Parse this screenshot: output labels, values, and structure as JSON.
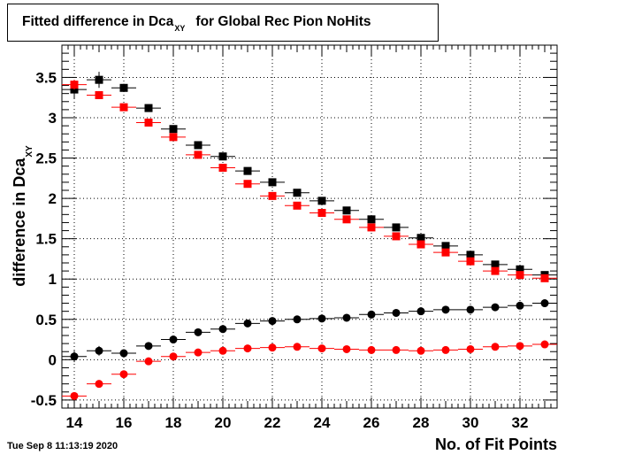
{
  "title": {
    "main": "Fitted difference in Dca",
    "sub": "XY",
    "rest": "for Global Rec Pion NoHits"
  },
  "timestamp": "Tue Sep  8 11:13:19 2020",
  "chart_data": {
    "type": "scatter",
    "title": "Fitted difference in Dca_XY for Global Rec Pion NoHits",
    "xlabel": "No. of Fit Points",
    "ylabel": {
      "main": "difference in Dca",
      "sub": "XY"
    },
    "xlim": [
      13.5,
      33.5
    ],
    "ylim": [
      -0.6,
      3.9
    ],
    "x_ticks": [
      "14",
      "16",
      "18",
      "20",
      "22",
      "24",
      "26",
      "28",
      "30",
      "32"
    ],
    "y_ticks": [
      "-0.5",
      "0",
      "0.5",
      "1",
      "1.5",
      "2",
      "2.5",
      "3",
      "3.5"
    ],
    "grid": true,
    "x": [
      14,
      15,
      16,
      17,
      18,
      19,
      20,
      21,
      22,
      23,
      24,
      25,
      26,
      27,
      28,
      29,
      30,
      31,
      32,
      33
    ],
    "series": [
      {
        "color": "#000000",
        "marker": "square",
        "values": [
          3.35,
          3.47,
          3.37,
          3.12,
          2.86,
          2.66,
          2.52,
          2.34,
          2.2,
          2.07,
          1.97,
          1.85,
          1.74,
          1.64,
          1.51,
          1.41,
          1.3,
          1.18,
          1.12,
          1.05
        ],
        "errors": [
          0.12,
          0.1,
          0.05,
          0.04,
          0.03,
          0.03,
          0.03,
          0.03,
          0.02,
          0.02,
          0.02,
          0.02,
          0.02,
          0.02,
          0.02,
          0.02,
          0.02,
          0.02,
          0.02,
          0.02
        ]
      },
      {
        "color": "#ff0000",
        "marker": "square",
        "values": [
          3.41,
          3.28,
          3.13,
          2.94,
          2.76,
          2.54,
          2.38,
          2.18,
          2.03,
          1.91,
          1.82,
          1.74,
          1.64,
          1.53,
          1.43,
          1.33,
          1.22,
          1.1,
          1.05,
          1.01
        ],
        "errors": [
          0.06,
          0.05,
          0.04,
          0.03,
          0.03,
          0.03,
          0.02,
          0.02,
          0.02,
          0.02,
          0.02,
          0.02,
          0.02,
          0.02,
          0.02,
          0.02,
          0.02,
          0.02,
          0.02,
          0.02
        ]
      },
      {
        "color": "#000000",
        "marker": "circle",
        "values": [
          0.04,
          0.11,
          0.08,
          0.17,
          0.25,
          0.34,
          0.38,
          0.45,
          0.48,
          0.5,
          0.51,
          0.52,
          0.56,
          0.58,
          0.6,
          0.62,
          0.62,
          0.65,
          0.67,
          0.7
        ],
        "errors": [
          0.07,
          0.06,
          0.04,
          0.03,
          0.03,
          0.02,
          0.02,
          0.02,
          0.02,
          0.02,
          0.02,
          0.02,
          0.02,
          0.02,
          0.02,
          0.02,
          0.02,
          0.02,
          0.02,
          0.02
        ]
      },
      {
        "color": "#ff0000",
        "marker": "circle",
        "values": [
          -0.45,
          -0.3,
          -0.18,
          -0.02,
          0.04,
          0.09,
          0.11,
          0.14,
          0.15,
          0.16,
          0.14,
          0.13,
          0.12,
          0.12,
          0.11,
          0.12,
          0.13,
          0.16,
          0.17,
          0.19
        ],
        "errors": [
          0.04,
          0.04,
          0.03,
          0.02,
          0.02,
          0.02,
          0.02,
          0.02,
          0.02,
          0.02,
          0.02,
          0.02,
          0.02,
          0.02,
          0.02,
          0.02,
          0.02,
          0.02,
          0.02,
          0.02
        ]
      }
    ]
  }
}
